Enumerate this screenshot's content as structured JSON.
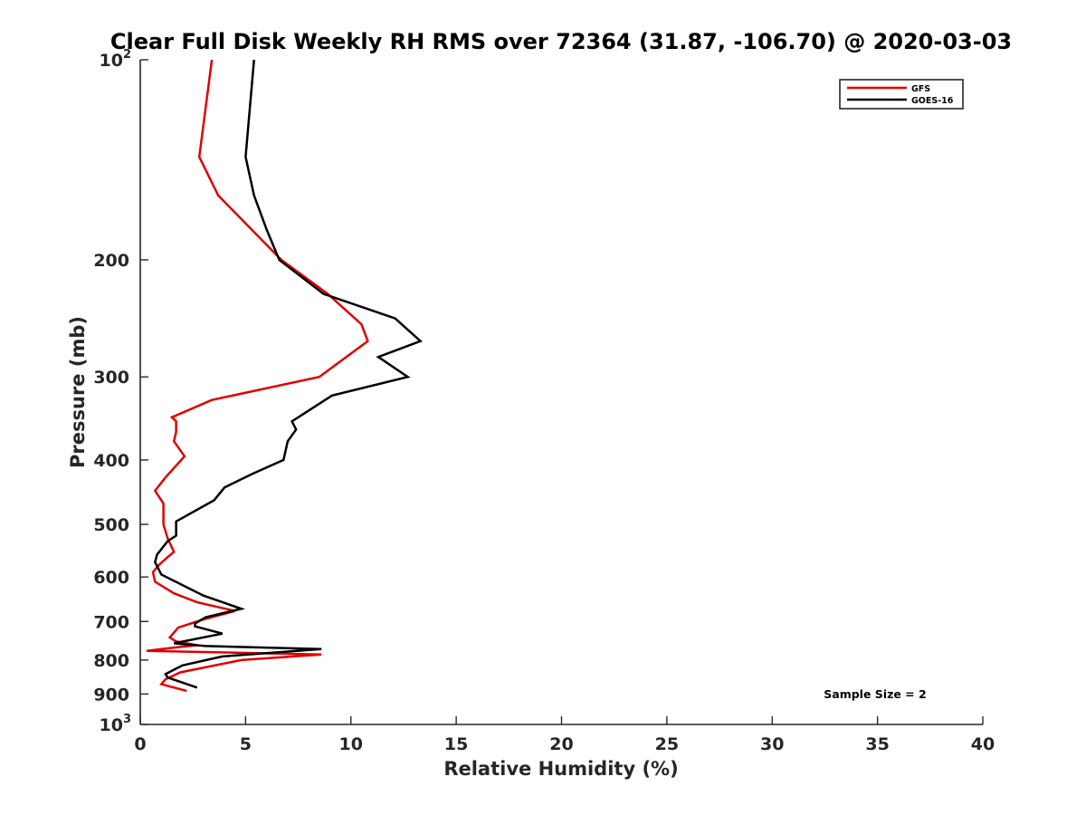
{
  "chart_data": {
    "type": "line",
    "title": "Clear Full Disk Weekly RH RMS over 72364 (31.87, -106.70) @ 2020-03-03",
    "xlabel": "Relative Humidity (%)",
    "ylabel": "Pressure (mb)",
    "xlim": [
      0,
      40
    ],
    "ylim": [
      100,
      1000
    ],
    "y_scale": "log",
    "y_reversed": true,
    "x_ticks": [
      "0",
      "5",
      "10",
      "15",
      "20",
      "25",
      "30",
      "35",
      "40"
    ],
    "y_ticks": [
      {
        "value": 100,
        "base": "10",
        "exp": "2"
      },
      {
        "value": 200,
        "label": "200"
      },
      {
        "value": 300,
        "label": "300"
      },
      {
        "value": 400,
        "label": "400"
      },
      {
        "value": 500,
        "label": "500"
      },
      {
        "value": 600,
        "label": "600"
      },
      {
        "value": 700,
        "label": "700"
      },
      {
        "value": 800,
        "label": "800"
      },
      {
        "value": 900,
        "label": "900"
      },
      {
        "value": 1000,
        "base": "10",
        "exp": "3"
      }
    ],
    "legend": {
      "placement": "top-right"
    },
    "annotation": "Sample Size = 2",
    "grid": false,
    "series": [
      {
        "name": "GFS",
        "color": "#e00000",
        "points": [
          [
            3.4,
            100
          ],
          [
            2.8,
            140
          ],
          [
            3.7,
            160
          ],
          [
            6.7,
            200
          ],
          [
            8.9,
            225
          ],
          [
            10.5,
            250
          ],
          [
            10.8,
            265
          ],
          [
            8.5,
            300
          ],
          [
            3.4,
            325
          ],
          [
            1.5,
            345
          ],
          [
            1.7,
            350
          ],
          [
            1.7,
            363
          ],
          [
            1.6,
            375
          ],
          [
            2.1,
            395
          ],
          [
            1.2,
            425
          ],
          [
            0.7,
            445
          ],
          [
            1.1,
            465
          ],
          [
            1.1,
            480
          ],
          [
            1.1,
            500
          ],
          [
            1.3,
            525
          ],
          [
            1.6,
            550
          ],
          [
            1.3,
            560
          ],
          [
            0.9,
            575
          ],
          [
            0.6,
            590
          ],
          [
            0.7,
            610
          ],
          [
            1.6,
            635
          ],
          [
            2.7,
            655
          ],
          [
            4.5,
            675
          ],
          [
            3.0,
            695
          ],
          [
            1.8,
            715
          ],
          [
            1.4,
            740
          ],
          [
            1.7,
            750
          ],
          [
            2.7,
            760
          ],
          [
            1.8,
            765
          ],
          [
            0.3,
            775
          ],
          [
            8.6,
            785
          ],
          [
            4.8,
            800
          ],
          [
            1.9,
            835
          ],
          [
            1.2,
            855
          ],
          [
            1.0,
            870
          ],
          [
            2.2,
            890
          ]
        ]
      },
      {
        "name": "GOES-16",
        "color": "#000000",
        "points": [
          [
            5.4,
            100
          ],
          [
            5.0,
            140
          ],
          [
            5.4,
            160
          ],
          [
            6.0,
            180
          ],
          [
            6.6,
            200
          ],
          [
            8.7,
            225
          ],
          [
            12.1,
            245
          ],
          [
            13.3,
            265
          ],
          [
            11.3,
            280
          ],
          [
            12.7,
            300
          ],
          [
            9.1,
            320
          ],
          [
            7.2,
            350
          ],
          [
            7.4,
            360
          ],
          [
            7.0,
            375
          ],
          [
            6.8,
            400
          ],
          [
            5.3,
            420
          ],
          [
            4.0,
            440
          ],
          [
            3.5,
            460
          ],
          [
            1.7,
            495
          ],
          [
            1.7,
            505
          ],
          [
            1.7,
            520
          ],
          [
            1.3,
            530
          ],
          [
            0.8,
            555
          ],
          [
            0.7,
            570
          ],
          [
            1.0,
            595
          ],
          [
            3.0,
            640
          ],
          [
            4.8,
            670
          ],
          [
            3.1,
            690
          ],
          [
            2.6,
            705
          ],
          [
            2.6,
            712
          ],
          [
            3.9,
            730
          ],
          [
            1.6,
            755
          ],
          [
            3.1,
            762
          ],
          [
            8.6,
            770
          ],
          [
            3.9,
            790
          ],
          [
            2.0,
            815
          ],
          [
            1.2,
            840
          ],
          [
            1.3,
            850
          ],
          [
            2.7,
            880
          ]
        ]
      }
    ]
  }
}
